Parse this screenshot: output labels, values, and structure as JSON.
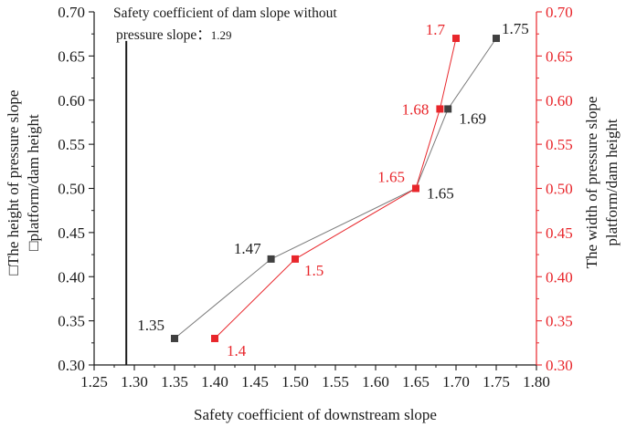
{
  "chart_data": {
    "type": "scatter",
    "xlabel": "Safety coefficient of downstream slope",
    "ylabel_left": [
      "□The height of pressure slope",
      "□platform/dam height"
    ],
    "ylabel_right": [
      "The width of pressure slope",
      "platform/dam height"
    ],
    "xlim": [
      1.25,
      1.8
    ],
    "ylim": [
      0.3,
      0.7
    ],
    "x_ticks": [
      "1.25",
      "1.30",
      "1.35",
      "1.40",
      "1.45",
      "1.50",
      "1.55",
      "1.60",
      "1.65",
      "1.70",
      "1.75",
      "1.80"
    ],
    "y_ticks": [
      "0.30",
      "0.35",
      "0.40",
      "0.45",
      "0.50",
      "0.55",
      "0.60",
      "0.65",
      "0.70"
    ],
    "colors": {
      "left": "#1a1a1a",
      "right": "#e8262b",
      "black_line": "#7a7a7a",
      "black_marker": "#404040"
    },
    "series": [
      {
        "axis": "left",
        "points": [
          {
            "x": 1.35,
            "y": 0.33,
            "label": "1.35"
          },
          {
            "x": 1.47,
            "y": 0.42,
            "label": "1.47"
          },
          {
            "x": 1.65,
            "y": 0.5,
            "label": "1.65"
          },
          {
            "x": 1.69,
            "y": 0.59,
            "label": "1.69"
          },
          {
            "x": 1.75,
            "y": 0.67,
            "label": "1.75"
          }
        ]
      },
      {
        "axis": "right",
        "points": [
          {
            "x": 1.4,
            "y": 0.33,
            "label": "1.4"
          },
          {
            "x": 1.5,
            "y": 0.42,
            "label": "1.5"
          },
          {
            "x": 1.65,
            "y": 0.5,
            "label": "1.65"
          },
          {
            "x": 1.68,
            "y": 0.59,
            "label": "1.68"
          },
          {
            "x": 1.7,
            "y": 0.67,
            "label": "1.7"
          }
        ]
      }
    ],
    "reference_line": {
      "x": 1.29
    },
    "annotation": {
      "line1": "Safety coefficient of dam slope without",
      "line2": "pressure slope：",
      "value": "1.29"
    }
  }
}
